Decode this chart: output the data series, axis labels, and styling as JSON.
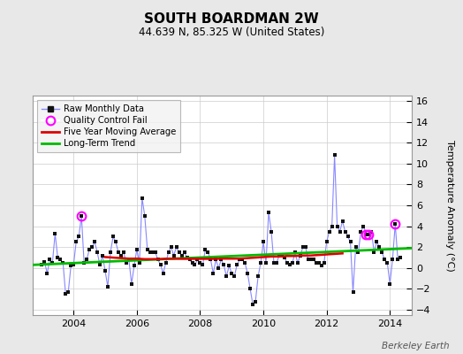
{
  "title": "SOUTH BOARDMAN 2W",
  "subtitle": "44.639 N, 85.325 W (United States)",
  "ylabel": "Temperature Anomaly (°C)",
  "credit": "Berkeley Earth",
  "ylim": [
    -4.5,
    16.5
  ],
  "yticks": [
    -4,
    -2,
    0,
    2,
    4,
    6,
    8,
    10,
    12,
    14,
    16
  ],
  "xlim": [
    2002.7,
    2014.7
  ],
  "xticks": [
    2004,
    2006,
    2008,
    2010,
    2012,
    2014
  ],
  "bg_color": "#e8e8e8",
  "plot_bg_color": "#ffffff",
  "raw_line_color": "#8888ff",
  "raw_marker_color": "#111111",
  "ma_color": "#dd0000",
  "trend_color": "#00bb00",
  "qc_color": "#ff00ff",
  "raw_times": [
    2003.0,
    2003.083,
    2003.167,
    2003.25,
    2003.333,
    2003.417,
    2003.5,
    2003.583,
    2003.667,
    2003.75,
    2003.833,
    2003.917,
    2004.0,
    2004.083,
    2004.167,
    2004.25,
    2004.333,
    2004.417,
    2004.5,
    2004.583,
    2004.667,
    2004.75,
    2004.833,
    2004.917,
    2005.0,
    2005.083,
    2005.167,
    2005.25,
    2005.333,
    2005.417,
    2005.5,
    2005.583,
    2005.667,
    2005.75,
    2005.833,
    2005.917,
    2006.0,
    2006.083,
    2006.167,
    2006.25,
    2006.333,
    2006.417,
    2006.5,
    2006.583,
    2006.667,
    2006.75,
    2006.833,
    2006.917,
    2007.0,
    2007.083,
    2007.167,
    2007.25,
    2007.333,
    2007.417,
    2007.5,
    2007.583,
    2007.667,
    2007.75,
    2007.833,
    2007.917,
    2008.0,
    2008.083,
    2008.167,
    2008.25,
    2008.333,
    2008.417,
    2008.5,
    2008.583,
    2008.667,
    2008.75,
    2008.833,
    2008.917,
    2009.0,
    2009.083,
    2009.167,
    2009.25,
    2009.333,
    2009.417,
    2009.5,
    2009.583,
    2009.667,
    2009.75,
    2009.833,
    2009.917,
    2010.0,
    2010.083,
    2010.167,
    2010.25,
    2010.333,
    2010.417,
    2010.5,
    2010.583,
    2010.667,
    2010.75,
    2010.833,
    2010.917,
    2011.0,
    2011.083,
    2011.167,
    2011.25,
    2011.333,
    2011.417,
    2011.5,
    2011.583,
    2011.667,
    2011.75,
    2011.833,
    2011.917,
    2012.0,
    2012.083,
    2012.167,
    2012.25,
    2012.333,
    2012.417,
    2012.5,
    2012.583,
    2012.667,
    2012.75,
    2012.833,
    2012.917,
    2013.0,
    2013.083,
    2013.167,
    2013.25,
    2013.333,
    2013.417,
    2013.5,
    2013.583,
    2013.667,
    2013.75,
    2013.833,
    2013.917,
    2014.0,
    2014.083,
    2014.167,
    2014.25,
    2014.333
  ],
  "raw_values": [
    0.3,
    0.6,
    -0.5,
    0.8,
    0.5,
    3.3,
    1.0,
    0.8,
    0.5,
    -2.5,
    -2.3,
    0.2,
    0.3,
    2.5,
    3.0,
    5.0,
    0.5,
    0.8,
    1.8,
    2.0,
    2.5,
    1.5,
    0.3,
    1.2,
    -0.3,
    -1.8,
    1.5,
    3.0,
    2.5,
    1.5,
    1.2,
    1.5,
    0.5,
    0.8,
    -1.5,
    0.2,
    1.8,
    0.5,
    6.7,
    5.0,
    1.8,
    1.5,
    1.5,
    1.5,
    0.8,
    0.3,
    -0.5,
    0.5,
    1.5,
    2.0,
    1.2,
    2.0,
    1.5,
    1.2,
    1.5,
    1.0,
    0.8,
    0.5,
    0.3,
    0.8,
    0.5,
    0.3,
    1.8,
    1.5,
    0.8,
    -0.5,
    0.8,
    0.0,
    0.8,
    0.3,
    -0.8,
    0.2,
    -0.5,
    -0.8,
    0.3,
    0.8,
    0.8,
    0.5,
    -0.5,
    -2.0,
    -3.5,
    -3.2,
    -0.8,
    0.5,
    2.5,
    0.5,
    5.3,
    3.5,
    0.5,
    0.5,
    1.2,
    1.2,
    1.0,
    0.5,
    0.3,
    0.5,
    1.5,
    0.5,
    1.2,
    2.0,
    2.0,
    0.8,
    0.8,
    0.8,
    0.5,
    0.5,
    0.2,
    0.5,
    2.5,
    3.5,
    4.0,
    10.8,
    4.0,
    3.5,
    4.5,
    3.5,
    3.0,
    2.5,
    -2.3,
    2.0,
    1.5,
    3.5,
    4.0,
    3.2,
    3.2,
    3.5,
    1.5,
    2.5,
    2.0,
    1.5,
    0.8,
    0.5,
    -1.5,
    0.8,
    4.2,
    0.8,
    1.0
  ],
  "qc_fail_points": [
    {
      "time": 2004.25,
      "value": 5.0
    },
    {
      "time": 2014.167,
      "value": 4.2
    },
    {
      "time": 2013.25,
      "value": 3.2
    },
    {
      "time": 2013.333,
      "value": 3.2
    }
  ],
  "trend_x": [
    2002.7,
    2014.7
  ],
  "trend_y": [
    0.3,
    1.9
  ],
  "ma_times": [
    2005.0,
    2005.25,
    2005.5,
    2005.75,
    2006.0,
    2006.25,
    2006.5,
    2006.75,
    2007.0,
    2007.25,
    2007.5,
    2007.75,
    2008.0,
    2008.25,
    2008.5,
    2008.75,
    2009.0,
    2009.25,
    2009.5,
    2009.75,
    2010.0,
    2010.25,
    2010.5,
    2010.75,
    2011.0,
    2011.25,
    2011.5,
    2011.75,
    2012.0,
    2012.25,
    2012.5
  ],
  "ma_values": [
    1.05,
    1.0,
    0.95,
    0.9,
    0.9,
    0.85,
    0.85,
    0.85,
    0.9,
    0.9,
    0.88,
    0.88,
    0.88,
    0.88,
    0.88,
    0.9,
    0.9,
    0.9,
    0.95,
    1.0,
    1.05,
    1.1,
    1.1,
    1.15,
    1.15,
    1.2,
    1.2,
    1.25,
    1.3,
    1.35,
    1.4
  ]
}
